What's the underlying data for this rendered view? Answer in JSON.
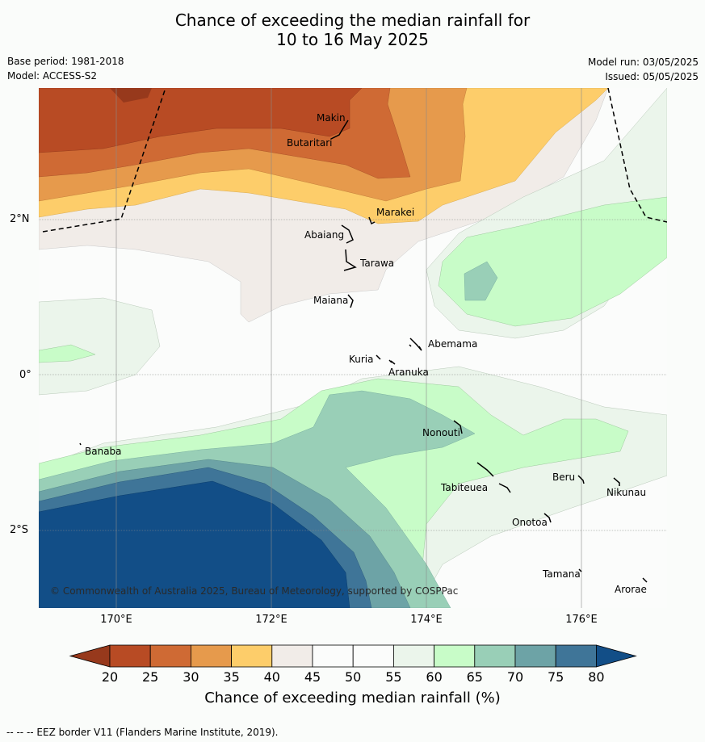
{
  "title_line1": "Chance of exceeding the median rainfall for",
  "title_line2": "10 to 16 May 2025",
  "base_period": "Base period: 1981-2018",
  "model": "Model: ACCESS-S2",
  "model_run": "Model run: 03/05/2025",
  "issued": "Issued: 05/05/2025",
  "longitude_labels": [
    "170°E",
    "172°E",
    "174°E",
    "176°E"
  ],
  "latitude_labels": [
    "2°N",
    "0°",
    "2°S"
  ],
  "places": [
    "Makin",
    "Butaritari",
    "Marakei",
    "Abaiang",
    "Tarawa",
    "Maiana",
    "Abemama",
    "Kuria",
    "Aranuka",
    "Nonouti",
    "Banaba",
    "Tabiteuea",
    "Beru",
    "Nikunau",
    "Onotoa",
    "Tamana",
    "Arorae"
  ],
  "copyright": "© Commonwealth of Australia 2025, Bureau of Meteorology, supported by COSPPac",
  "colorbar": {
    "ticks": [
      "20",
      "25",
      "30",
      "35",
      "40",
      "45",
      "50",
      "55",
      "60",
      "65",
      "70",
      "75",
      "80"
    ],
    "label": "Chance of exceeding median rainfall (%)",
    "colors": [
      "#97391c",
      "#b84b24",
      "#cf6a34",
      "#e69a4c",
      "#fdcd6a",
      "#f1ece8",
      "#fbfcfb",
      "#fbfcfb",
      "#ebf5eb",
      "#c8fcc8",
      "#99cfb7",
      "#6da3a6",
      "#3f7598",
      "#124e87"
    ]
  },
  "eez_note": "--  --  -- EEZ border V11 (Flanders Marine Institute, 2019)."
}
